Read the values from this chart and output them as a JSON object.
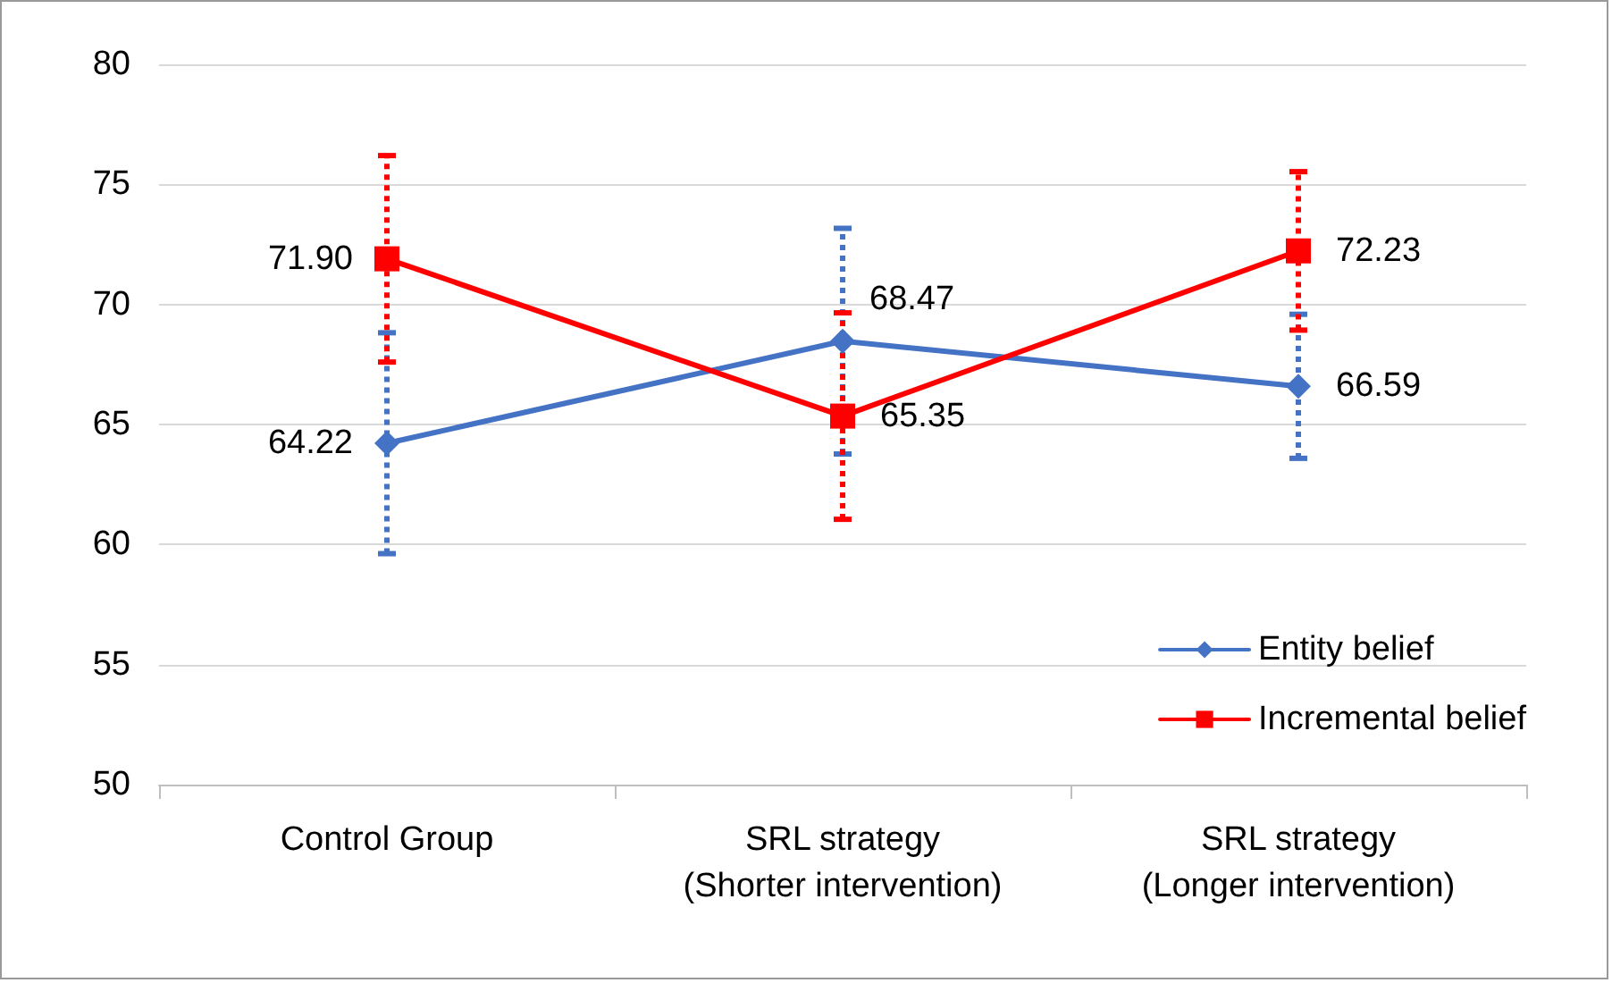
{
  "chart_data": {
    "type": "line",
    "categories": [
      "Control Group",
      "SRL strategy\n(Shorter intervention)",
      "SRL strategy\n(Longer intervention)"
    ],
    "series": [
      {
        "name": "Entity belief",
        "color": "#4472c4",
        "marker": "diamond",
        "values": [
          64.22,
          68.47,
          66.59
        ],
        "value_labels": [
          "64.22",
          "68.47",
          "66.59"
        ],
        "errors": [
          4.6,
          4.7,
          3.0
        ]
      },
      {
        "name": "Incremental belief",
        "color": "#ff0000",
        "marker": "square",
        "values": [
          71.9,
          65.35,
          72.23
        ],
        "value_labels": [
          "71.90",
          "65.35",
          "72.23"
        ],
        "errors": [
          4.3,
          4.3,
          3.3
        ]
      }
    ],
    "ylim": [
      50,
      80
    ],
    "yticks": [
      50,
      55,
      60,
      65,
      70,
      75,
      80
    ],
    "grid": "y",
    "legend": "bottom right",
    "line_style": "solid"
  }
}
